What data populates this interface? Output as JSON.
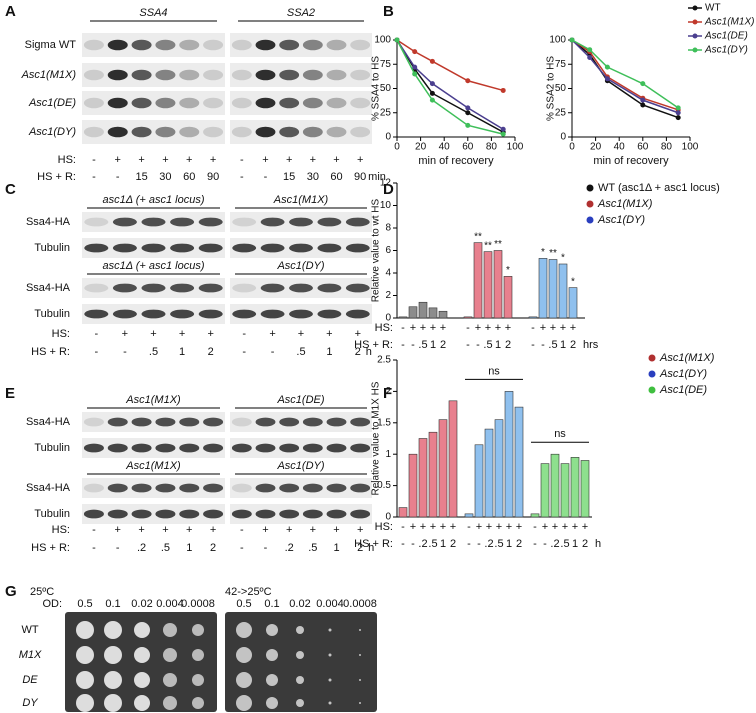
{
  "panel_labels": [
    "A",
    "B",
    "C",
    "D",
    "E",
    "F",
    "G"
  ],
  "panel_a": {
    "genes": [
      "SSA4",
      "SSA2"
    ],
    "rows": [
      "Sigma WT",
      "Asc1(M1X)",
      "Asc1(DE)",
      "Asc1(DY)"
    ],
    "hs_label": "HS:",
    "hs": [
      "-",
      "+",
      "+",
      "+",
      "+",
      "+",
      "-",
      "+",
      "+",
      "+",
      "+",
      "+"
    ],
    "hsr_label": "HS + R:",
    "hsr": [
      "-",
      "-",
      "15",
      "30",
      "60",
      "90",
      "-",
      "-",
      "15",
      "30",
      "60",
      "90"
    ],
    "unit": "min"
  },
  "panel_c": {
    "blots": [
      {
        "headers": [
          "asc1Δ (+ asc1 locus)",
          "Asc1(M1X)"
        ],
        "rows": [
          "Ssa4-HA",
          "Tubulin"
        ]
      },
      {
        "headers": [
          "asc1Δ (+ asc1 locus)",
          "Asc1(DY)"
        ],
        "rows": [
          "Ssa4-HA",
          "Tubulin"
        ]
      }
    ],
    "hs_label": "HS:",
    "hs": [
      "-",
      "+",
      "+",
      "+",
      "+",
      "-",
      "+",
      "+",
      "+",
      "+"
    ],
    "hsr_label": "HS + R:",
    "hsr": [
      "-",
      "-",
      ".5",
      "1",
      "2",
      "-",
      "-",
      ".5",
      "1",
      "2"
    ],
    "unit": "h"
  },
  "panel_e": {
    "blots": [
      {
        "headers": [
          "Asc1(M1X)",
          "Asc1(DE)"
        ],
        "rows": [
          "Ssa4-HA",
          "Tubulin"
        ]
      },
      {
        "headers": [
          "Asc1(M1X)",
          "Asc1(DY)"
        ],
        "rows": [
          "Ssa4-HA",
          "Tubulin"
        ]
      }
    ],
    "hs_label": "HS:",
    "hs": [
      "-",
      "+",
      "+",
      "+",
      "+",
      "+",
      "-",
      "+",
      "+",
      "+",
      "+",
      "+"
    ],
    "hsr_label": "HS + R:",
    "hsr": [
      "-",
      "-",
      ".2",
      ".5",
      "1",
      "2",
      "-",
      "-",
      ".2",
      ".5",
      "1",
      "2"
    ],
    "unit": "h"
  },
  "panel_g": {
    "conditions": [
      "25ºC",
      "42->25ºC"
    ],
    "od_label": "OD:",
    "od": [
      "0.5",
      "0.1",
      "0.02",
      "0.004",
      "0.0008"
    ],
    "strains": [
      "WT",
      "M1X",
      "DE",
      "DY"
    ]
  },
  "chart_data": [
    {
      "type": "line",
      "ylabel": "% SSA4 to HS",
      "xlabel": "min of recovery",
      "x": [
        0,
        15,
        30,
        60,
        90
      ],
      "xlim": [
        0,
        100
      ],
      "xticks": [
        0,
        20,
        40,
        60,
        80,
        100
      ],
      "ylim": [
        0,
        100
      ],
      "yticks": [
        0,
        25,
        50,
        75,
        100
      ],
      "legend": false,
      "series": [
        {
          "color": "#111111",
          "values": [
            100,
            70,
            45,
            25,
            5
          ]
        },
        {
          "color": "#c0392b",
          "values": [
            100,
            88,
            78,
            58,
            48
          ]
        },
        {
          "color": "#4b3f8f",
          "values": [
            100,
            72,
            55,
            30,
            8
          ]
        },
        {
          "color": "#3fbf5a",
          "values": [
            100,
            65,
            38,
            12,
            3
          ]
        }
      ]
    },
    {
      "type": "line",
      "ylabel": "% SSA2 to HS",
      "xlabel": "min of recovery",
      "x": [
        0,
        15,
        30,
        60,
        90
      ],
      "xlim": [
        0,
        100
      ],
      "xticks": [
        0,
        20,
        40,
        60,
        80,
        100
      ],
      "ylim": [
        0,
        100
      ],
      "yticks": [
        0,
        25,
        50,
        75,
        100
      ],
      "legend": true,
      "series": [
        {
          "name": "WT",
          "color": "#111111",
          "values": [
            100,
            85,
            58,
            33,
            20
          ]
        },
        {
          "name": "Asc1(M1X)",
          "color": "#c0392b",
          "values": [
            100,
            88,
            62,
            40,
            28
          ]
        },
        {
          "name": "Asc1(DE)",
          "color": "#4b3f8f",
          "values": [
            100,
            82,
            60,
            38,
            25
          ]
        },
        {
          "name": "Asc1(DY)",
          "color": "#3fbf5a",
          "values": [
            100,
            90,
            72,
            55,
            30
          ]
        }
      ]
    },
    {
      "type": "bar",
      "ylabel": "Relative value to wt HS",
      "ylim": [
        0,
        12
      ],
      "yticks": [
        0,
        2,
        4,
        6,
        8,
        10,
        12
      ],
      "hs_label": "HS:",
      "hs": [
        "-",
        "+",
        "+",
        "+",
        "+"
      ],
      "hsr_label": "HS + R:",
      "hsr": [
        "-",
        "-",
        ".5",
        "1",
        "2"
      ],
      "unit": "hrs",
      "series": [
        {
          "name": "WT (asc1Δ + asc1 locus)",
          "italic": false,
          "color": "#111111",
          "bar_color": "#8c8c8c",
          "values": [
            0.1,
            1,
            1.4,
            0.9,
            0.6
          ],
          "significance": [
            null,
            null,
            null,
            null,
            null
          ]
        },
        {
          "name": "Asc1(M1X)",
          "italic": true,
          "color": "#b03030",
          "bar_color": "#e8808e",
          "values": [
            0.1,
            6.7,
            5.9,
            6.0,
            3.7
          ],
          "significance": [
            null,
            "**",
            "**",
            "**",
            "*"
          ]
        },
        {
          "name": "Asc1(DY)",
          "italic": true,
          "color": "#2a3fbf",
          "bar_color": "#8fc0ee",
          "values": [
            0.1,
            5.3,
            5.2,
            4.8,
            2.7
          ],
          "significance": [
            null,
            "*",
            "**",
            "*",
            "*"
          ]
        }
      ]
    },
    {
      "type": "bar",
      "ylabel": "Relative value to M1X HS",
      "ylim": [
        0,
        2.5
      ],
      "yticks": [
        0,
        0.5,
        1,
        1.5,
        2,
        2.5
      ],
      "hs_label": "HS:",
      "hs": [
        "-",
        "+",
        "+",
        "+",
        "+",
        "+"
      ],
      "hsr_label": "HS + R:",
      "hsr": [
        "-",
        "-",
        ".2",
        ".5",
        "1",
        "2"
      ],
      "unit": "h",
      "brackets": [
        {
          "series": 1,
          "label": "ns"
        },
        {
          "series": 2,
          "label": "ns"
        }
      ],
      "series": [
        {
          "name": "Asc1(M1X)",
          "italic": true,
          "color": "#b03030",
          "bar_color": "#e8808e",
          "values": [
            0.15,
            1.0,
            1.25,
            1.35,
            1.55,
            1.85
          ],
          "significance": [
            null,
            null,
            null,
            null,
            null,
            null
          ]
        },
        {
          "name": "Asc1(DY)",
          "italic": true,
          "color": "#2a3fbf",
          "bar_color": "#8fc0ee",
          "values": [
            0.05,
            1.15,
            1.4,
            1.55,
            2.0,
            1.75
          ],
          "significance": [
            null,
            null,
            null,
            null,
            null,
            null
          ]
        },
        {
          "name": "Asc1(DE)",
          "italic": true,
          "color": "#3fbf3f",
          "bar_color": "#8ee08e",
          "values": [
            0.05,
            0.85,
            1.0,
            0.85,
            0.95,
            0.9
          ],
          "significance": [
            null,
            null,
            null,
            null,
            null,
            null
          ]
        }
      ]
    }
  ]
}
